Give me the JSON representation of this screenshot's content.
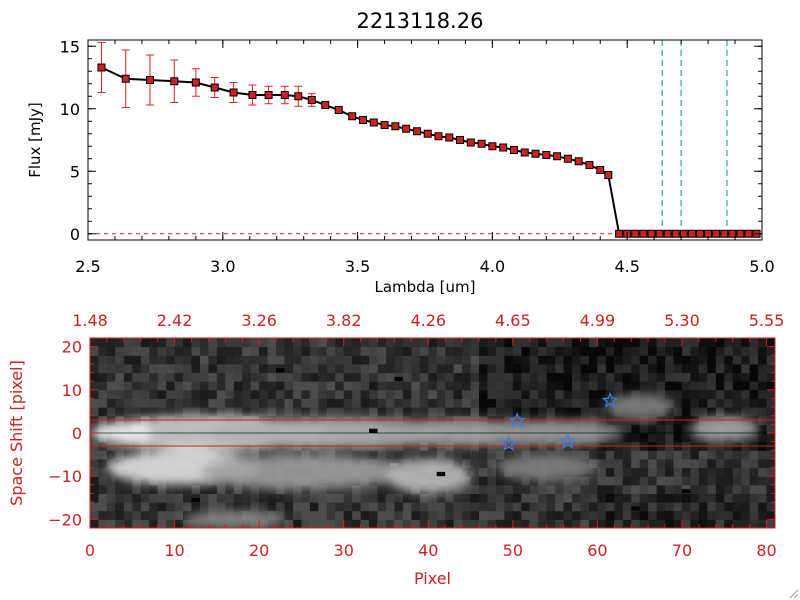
{
  "title": "2213118.26",
  "colors": {
    "line": "#000000",
    "marker": "#cc2222",
    "errorbar": "#dd2222",
    "dashed_lines": "#2aa0b8",
    "panel2_axes": "#cc2222",
    "stars": "#3a7fe0",
    "aperture_lines": "#cc2222"
  },
  "chart_data": [
    {
      "type": "line",
      "title": "2213118.26",
      "xlabel": "Lambda [um]",
      "ylabel": "Flux [mJy]",
      "xlim": [
        2.5,
        5.0
      ],
      "ylim": [
        -0.5,
        15.5
      ],
      "xticks": [
        2.5,
        3.0,
        3.5,
        4.0,
        4.5,
        5.0
      ],
      "xtick_labels": [
        "2.5",
        "3.0",
        "3.5",
        "4.0",
        "4.5",
        "5.0"
      ],
      "yticks": [
        0,
        5,
        10,
        15
      ],
      "ytick_labels": [
        "0",
        "5",
        "10",
        "15"
      ],
      "vertical_dashed_lines": [
        4.63,
        4.7,
        4.87
      ],
      "zero_line_dashed": true,
      "series": [
        {
          "x": [
            2.55,
            2.64,
            2.73,
            2.82,
            2.9,
            2.97,
            3.04,
            3.11,
            3.17,
            3.23,
            3.28,
            3.33,
            3.38,
            3.43,
            3.48,
            3.52,
            3.56,
            3.6,
            3.64,
            3.68,
            3.72,
            3.76,
            3.8,
            3.84,
            3.88,
            3.92,
            3.96,
            4.0,
            4.04,
            4.08,
            4.12,
            4.16,
            4.2,
            4.24,
            4.28,
            4.32,
            4.36,
            4.4,
            4.43,
            4.47,
            4.5,
            4.53,
            4.56,
            4.59,
            4.62,
            4.65,
            4.68,
            4.71,
            4.74,
            4.77,
            4.8,
            4.83,
            4.86,
            4.89,
            4.92,
            4.95,
            4.98
          ],
          "y": [
            13.3,
            12.4,
            12.3,
            12.2,
            12.1,
            11.7,
            11.3,
            11.1,
            11.1,
            11.1,
            11.0,
            10.7,
            10.3,
            9.9,
            9.4,
            9.1,
            8.9,
            8.7,
            8.6,
            8.4,
            8.2,
            8.0,
            7.8,
            7.7,
            7.5,
            7.3,
            7.2,
            7.0,
            6.9,
            6.7,
            6.5,
            6.4,
            6.3,
            6.2,
            6.0,
            5.8,
            5.5,
            5.1,
            4.7,
            0,
            0,
            0,
            0,
            0,
            0,
            0,
            0,
            0,
            0,
            0,
            0,
            0,
            0,
            0,
            0,
            0,
            0
          ],
          "yerr": [
            2.0,
            2.3,
            2.0,
            1.7,
            1.1,
            0.8,
            0.8,
            0.8,
            0.7,
            0.7,
            0.8,
            0.5,
            0.3,
            0.2,
            0.2,
            0.2,
            0.2,
            0.2,
            0.2,
            0.2,
            0.2,
            0.2,
            0.2,
            0.2,
            0.2,
            0.2,
            0.2,
            0.2,
            0.2,
            0.2,
            0.2,
            0.2,
            0.2,
            0.2,
            0.2,
            0.2,
            0.2,
            0.2,
            0.2,
            0,
            0,
            0,
            0,
            0,
            0,
            0,
            0,
            0,
            0,
            0,
            0,
            0,
            0,
            0,
            0,
            0,
            0
          ]
        }
      ]
    },
    {
      "type": "heatmap",
      "xlabel": "Pixel",
      "ylabel": "Space Shift [pixel]",
      "xlim": [
        0,
        81
      ],
      "ylim": [
        -22,
        22
      ],
      "xticks": [
        0,
        10,
        20,
        30,
        40,
        50,
        60,
        70,
        80
      ],
      "xtick_labels": [
        "0",
        "10",
        "20",
        "30",
        "40",
        "50",
        "60",
        "70",
        "80"
      ],
      "yticks": [
        -20,
        -10,
        0,
        10,
        20
      ],
      "ytick_labels": [
        "−20",
        "−10",
        "0",
        "10",
        "20"
      ],
      "top_tick_labels": [
        "1.48",
        "2.42",
        "3.26",
        "3.82",
        "4.26",
        "4.65",
        "4.99",
        "5.30",
        "5.55"
      ],
      "aperture_lines_y": [
        3,
        -3
      ],
      "center_line_y": 0,
      "stars": [
        {
          "x": 49.5,
          "y": -2.5
        },
        {
          "x": 50.5,
          "y": 2.8
        },
        {
          "x": 56.5,
          "y": -2.0
        },
        {
          "x": 61.5,
          "y": 7.5
        }
      ],
      "blobs": [
        {
          "x": 14,
          "y": 0,
          "w": 14,
          "h": 4,
          "level": 0.95
        },
        {
          "x": 28,
          "y": 0,
          "w": 14,
          "h": 3.5,
          "level": 0.7
        },
        {
          "x": 44,
          "y": 0,
          "w": 10,
          "h": 3,
          "level": 0.55
        },
        {
          "x": 55,
          "y": 0,
          "w": 8,
          "h": 3,
          "level": 0.4
        },
        {
          "x": 11,
          "y": -8,
          "w": 9,
          "h": 4,
          "level": 0.85
        },
        {
          "x": 25,
          "y": -9,
          "w": 12,
          "h": 4,
          "level": 0.5
        },
        {
          "x": 40,
          "y": -10,
          "w": 5,
          "h": 4,
          "level": 0.65
        },
        {
          "x": 75,
          "y": 1,
          "w": 4,
          "h": 3,
          "level": 0.55
        },
        {
          "x": 65,
          "y": 6,
          "w": 4,
          "h": 3,
          "level": 0.35
        },
        {
          "x": 17,
          "y": -20,
          "w": 6,
          "h": 2,
          "level": 0.4
        },
        {
          "x": 54,
          "y": -8,
          "w": 6,
          "h": 3,
          "level": 0.35
        }
      ]
    }
  ]
}
